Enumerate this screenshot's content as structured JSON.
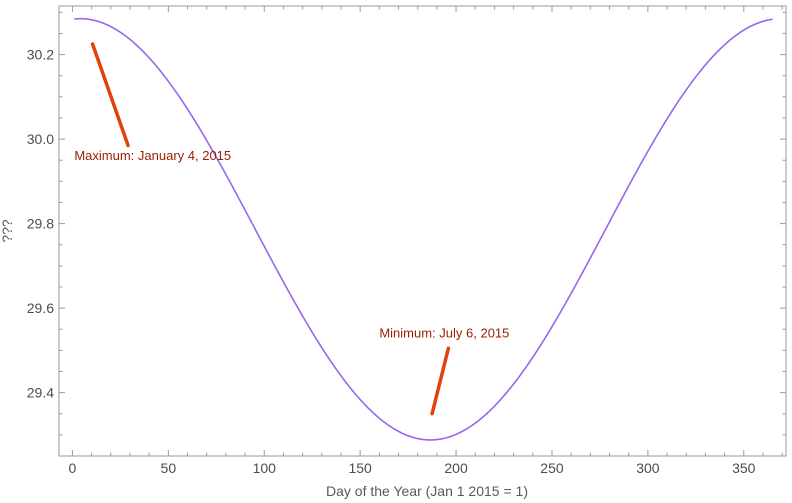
{
  "chart_data": {
    "type": "line",
    "title": "",
    "xlabel": "Day of the Year (Jan 1 2015 = 1)",
    "ylabel": "???",
    "xlim": [
      -7,
      372
    ],
    "ylim": [
      29.25,
      30.315
    ],
    "xticks": [
      0,
      50,
      100,
      150,
      200,
      250,
      300,
      350
    ],
    "xtick_labels": [
      "0",
      "50",
      "100",
      "150",
      "200",
      "250",
      "300",
      "350"
    ],
    "yticks": [
      29.4,
      29.6,
      29.8,
      30.0,
      30.2
    ],
    "ytick_labels": [
      "29.4",
      "29.6",
      "29.8",
      "30.0",
      "30.2"
    ],
    "grid": false,
    "frame": true,
    "series": [
      {
        "color": "#9966ee",
        "curve": {
          "form": "cosine",
          "period_days": 365.25,
          "max_day": 4,
          "max_value": 30.285,
          "min_day": 187,
          "min_value": 29.288,
          "x_range": [
            1,
            365
          ]
        },
        "x": [
          1,
          4,
          30,
          60,
          90,
          120,
          150,
          187,
          220,
          250,
          280,
          310,
          340,
          365
        ],
        "y": [
          30.284,
          30.285,
          30.213,
          29.999,
          29.705,
          29.457,
          29.323,
          29.288,
          29.354,
          29.545,
          29.816,
          30.073,
          30.244,
          30.282
        ]
      }
    ],
    "annotations": [
      {
        "text": "Maximum: January 4, 2015",
        "color": "#9a1c00",
        "text_pos": [
          1,
          29.95
        ],
        "arrow": {
          "from": [
            29,
            29.985
          ],
          "to": [
            10.5,
            30.225
          ]
        }
      },
      {
        "text": "Minimum: July 6, 2015",
        "color": "#9a1c00",
        "text_pos": [
          160,
          29.53
        ],
        "arrow": {
          "from": [
            196,
            29.505
          ],
          "to": [
            187.5,
            29.35
          ]
        }
      }
    ],
    "arrow_color": "#e2410b"
  }
}
